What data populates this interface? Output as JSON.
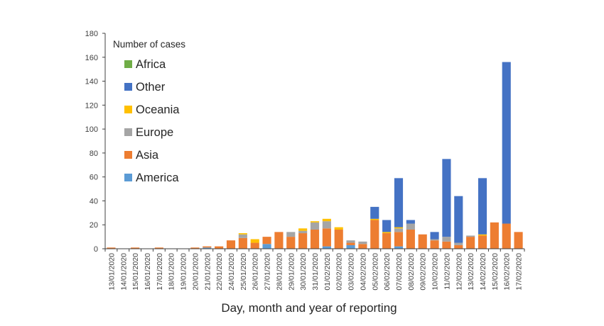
{
  "chart_data": {
    "type": "bar",
    "stacked": true,
    "title": "",
    "xlabel": "Day, month and year of reporting",
    "ylabel": "",
    "ylim": [
      0,
      180
    ],
    "yticks": [
      0,
      20,
      40,
      60,
      80,
      100,
      120,
      140,
      160,
      180
    ],
    "grid": false,
    "legend": {
      "title": "Number of cases",
      "placement": "top-left",
      "order": [
        "Africa",
        "Other",
        "Oceania",
        "Europe",
        "Asia",
        "America"
      ]
    },
    "categories": [
      "13/01/2020",
      "14/01/2020",
      "15/01/2020",
      "16/01/2020",
      "17/01/2020",
      "18/01/2020",
      "19/01/2020",
      "20/01/2020",
      "21/01/2020",
      "22/01/2020",
      "24/01/2020",
      "25/01/2020",
      "26/01/2020",
      "27/01/2020",
      "28/01/2020",
      "29/01/2020",
      "30/01/2020",
      "31/01/2020",
      "01/02/2020",
      "02/02/2020",
      "03/02/2020",
      "04/02/2020",
      "05/02/2020",
      "06/02/2020",
      "07/02/2020",
      "08/02/2020",
      "09/02/2020",
      "10/02/2020",
      "11/02/2020",
      "12/02/2020",
      "13/02/2020",
      "14/02/2020",
      "15/02/2020",
      "16/02/2020",
      "17/02/2020"
    ],
    "series": [
      {
        "name": "America",
        "color": "#5B9BD5",
        "values": [
          0,
          0,
          0,
          0,
          0,
          0,
          0,
          0,
          1,
          0,
          0,
          0,
          0,
          4,
          0,
          0,
          0,
          0,
          2,
          0,
          3,
          0,
          0,
          0,
          2,
          0,
          0,
          0,
          0,
          0,
          0,
          0,
          0,
          0,
          0
        ]
      },
      {
        "name": "Asia",
        "color": "#ED7D31",
        "values": [
          1,
          0,
          1,
          0,
          1,
          0,
          0,
          1,
          1,
          2,
          7,
          9,
          5,
          6,
          14,
          10,
          13,
          16,
          15,
          16,
          2,
          4,
          24,
          13,
          12,
          16,
          12,
          7,
          6,
          3,
          10,
          11,
          22,
          21,
          14
        ]
      },
      {
        "name": "Europe",
        "color": "#A5A5A5",
        "values": [
          0,
          0,
          0,
          0,
          0,
          0,
          0,
          0,
          0,
          0,
          0,
          3,
          0,
          0,
          0,
          4,
          2,
          6,
          6,
          0,
          2,
          2,
          0,
          0,
          3,
          5,
          0,
          1,
          4,
          2,
          1,
          0,
          0,
          0,
          0
        ]
      },
      {
        "name": "Oceania",
        "color": "#FFC000",
        "values": [
          0,
          0,
          0,
          0,
          0,
          0,
          0,
          0,
          0,
          0,
          0,
          1,
          3,
          0,
          0,
          0,
          2,
          1,
          2,
          2,
          0,
          0,
          1,
          1,
          1,
          0,
          0,
          0,
          0,
          0,
          0,
          1,
          0,
          0,
          0
        ]
      },
      {
        "name": "Other",
        "color": "#4472C4",
        "values": [
          0,
          0,
          0,
          0,
          0,
          0,
          0,
          0,
          0,
          0,
          0,
          0,
          0,
          0,
          0,
          0,
          0,
          0,
          0,
          0,
          0,
          0,
          10,
          10,
          41,
          3,
          0,
          6,
          65,
          39,
          0,
          47,
          0,
          135,
          0
        ]
      },
      {
        "name": "Africa",
        "color": "#70AD47",
        "values": [
          0,
          0,
          0,
          0,
          0,
          0,
          0,
          0,
          0,
          0,
          0,
          0,
          0,
          0,
          0,
          0,
          0,
          0,
          0,
          0,
          0,
          0,
          0,
          0,
          0,
          0,
          0,
          0,
          0,
          0,
          0,
          0,
          0,
          0,
          0
        ]
      }
    ]
  }
}
